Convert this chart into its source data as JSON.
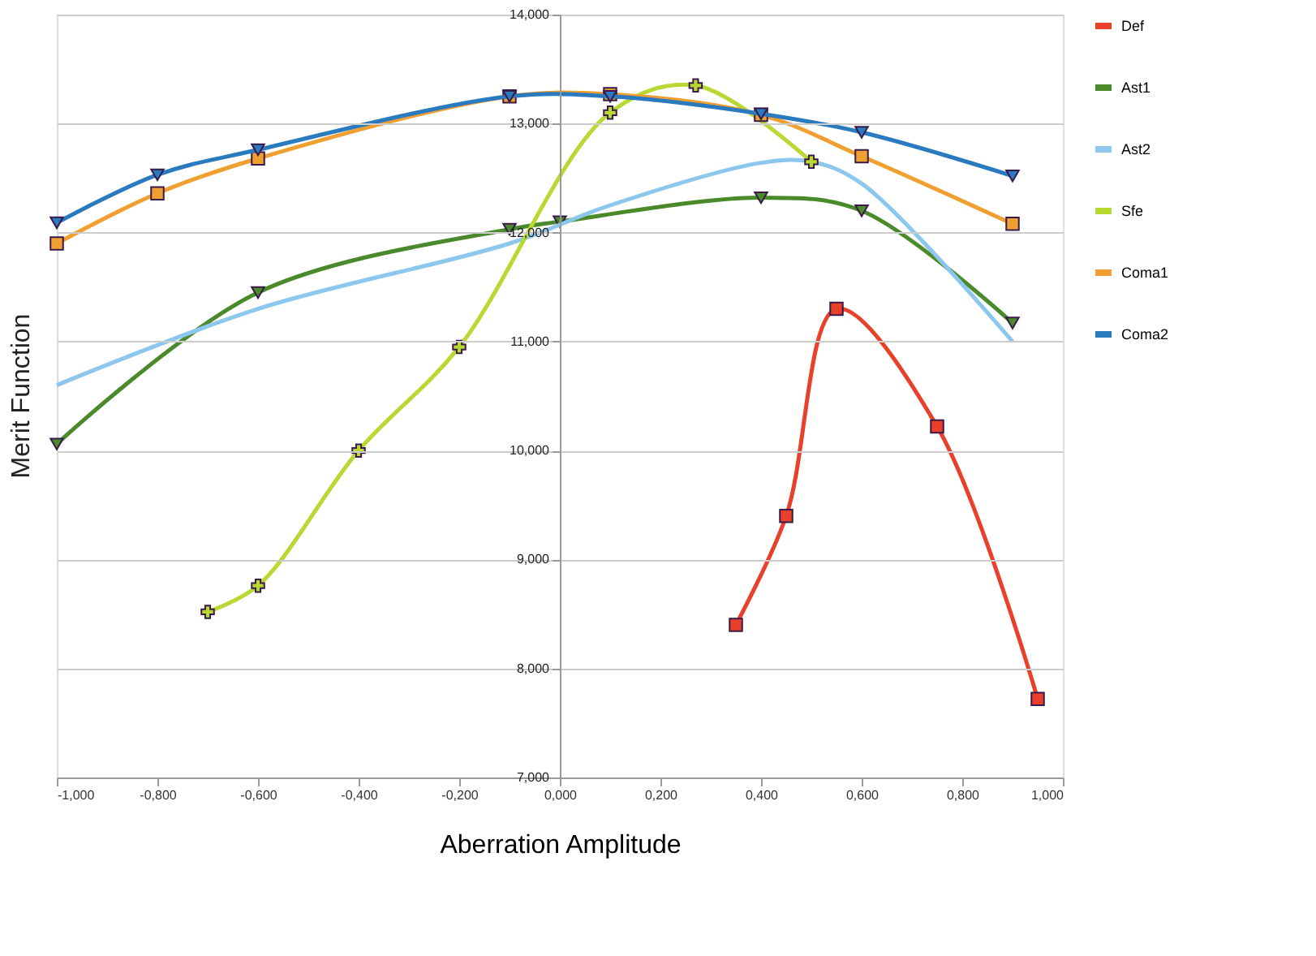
{
  "chart_data": {
    "type": "line",
    "xlabel": "Aberration Amplitude",
    "ylabel": "Merit Function",
    "xlim": [
      -1,
      1
    ],
    "ylim": [
      7,
      14
    ],
    "xticks": [
      {
        "value": -1,
        "label": "-1,000"
      },
      {
        "value": -0.8,
        "label": "-0,800"
      },
      {
        "value": -0.6,
        "label": "-0,600"
      },
      {
        "value": -0.4,
        "label": "-0,400"
      },
      {
        "value": -0.2,
        "label": "-0,200"
      },
      {
        "value": 0,
        "label": "0,000"
      },
      {
        "value": 0.2,
        "label": "0,200"
      },
      {
        "value": 0.4,
        "label": "0,400"
      },
      {
        "value": 0.6,
        "label": "0,600"
      },
      {
        "value": 0.8,
        "label": "0,800"
      },
      {
        "value": 1,
        "label": "1,000"
      }
    ],
    "yticks": [
      {
        "value": 7,
        "label": "7,000"
      },
      {
        "value": 8,
        "label": "8,000"
      },
      {
        "value": 9,
        "label": "9,000"
      },
      {
        "value": 10,
        "label": "10,000"
      },
      {
        "value": 11,
        "label": "11,000"
      },
      {
        "value": 12,
        "label": "12,000"
      },
      {
        "value": 13,
        "label": "13,000"
      },
      {
        "value": 14,
        "label": "14,000"
      }
    ],
    "grid": "y",
    "legend": "right",
    "line_style": "solid",
    "series": [
      {
        "name": "Def",
        "color": "#e8402a",
        "marker": "square",
        "x": [
          0.35,
          0.45,
          0.55,
          0.75,
          0.95
        ],
        "values": [
          8.4,
          9.4,
          11.3,
          10.22,
          7.72
        ]
      },
      {
        "name": "Ast1",
        "color": "#4a8a2a",
        "marker": "triangle",
        "x": [
          -1,
          -0.6,
          -0.1,
          0,
          0.4,
          0.6,
          0.9
        ],
        "values": [
          10.06,
          11.45,
          12.03,
          12.1,
          12.32,
          12.2,
          11.17
        ]
      },
      {
        "name": "Ast2",
        "color": "#8cc8ee",
        "marker": "none",
        "x": [
          -1,
          -0.6,
          -0.1,
          0.1,
          0.4,
          0.5,
          0.6,
          0.9
        ],
        "values": [
          10.6,
          11.3,
          11.9,
          12.25,
          12.64,
          12.65,
          12.45,
          11.0
        ]
      },
      {
        "name": "Sfe",
        "color": "#b8d832",
        "marker": "cross",
        "x": [
          -0.7,
          -0.6,
          -0.4,
          -0.2,
          0.1,
          0.27,
          0.5
        ],
        "values": [
          8.52,
          8.76,
          10.0,
          10.95,
          13.1,
          13.35,
          12.65
        ]
      },
      {
        "name": "Coma1",
        "color": "#f0a030",
        "marker": "square",
        "x": [
          -1,
          -0.8,
          -0.6,
          -0.1,
          0.1,
          0.4,
          0.6,
          0.9
        ],
        "values": [
          11.9,
          12.36,
          12.68,
          13.25,
          13.27,
          13.08,
          12.7,
          12.08
        ]
      },
      {
        "name": "Coma2",
        "color": "#2a7ac0",
        "marker": "triangle",
        "x": [
          -1,
          -0.8,
          -0.6,
          -0.1,
          0.1,
          0.4,
          0.6,
          0.9
        ],
        "values": [
          12.09,
          12.53,
          12.76,
          13.25,
          13.25,
          13.09,
          12.92,
          12.52
        ]
      }
    ]
  }
}
